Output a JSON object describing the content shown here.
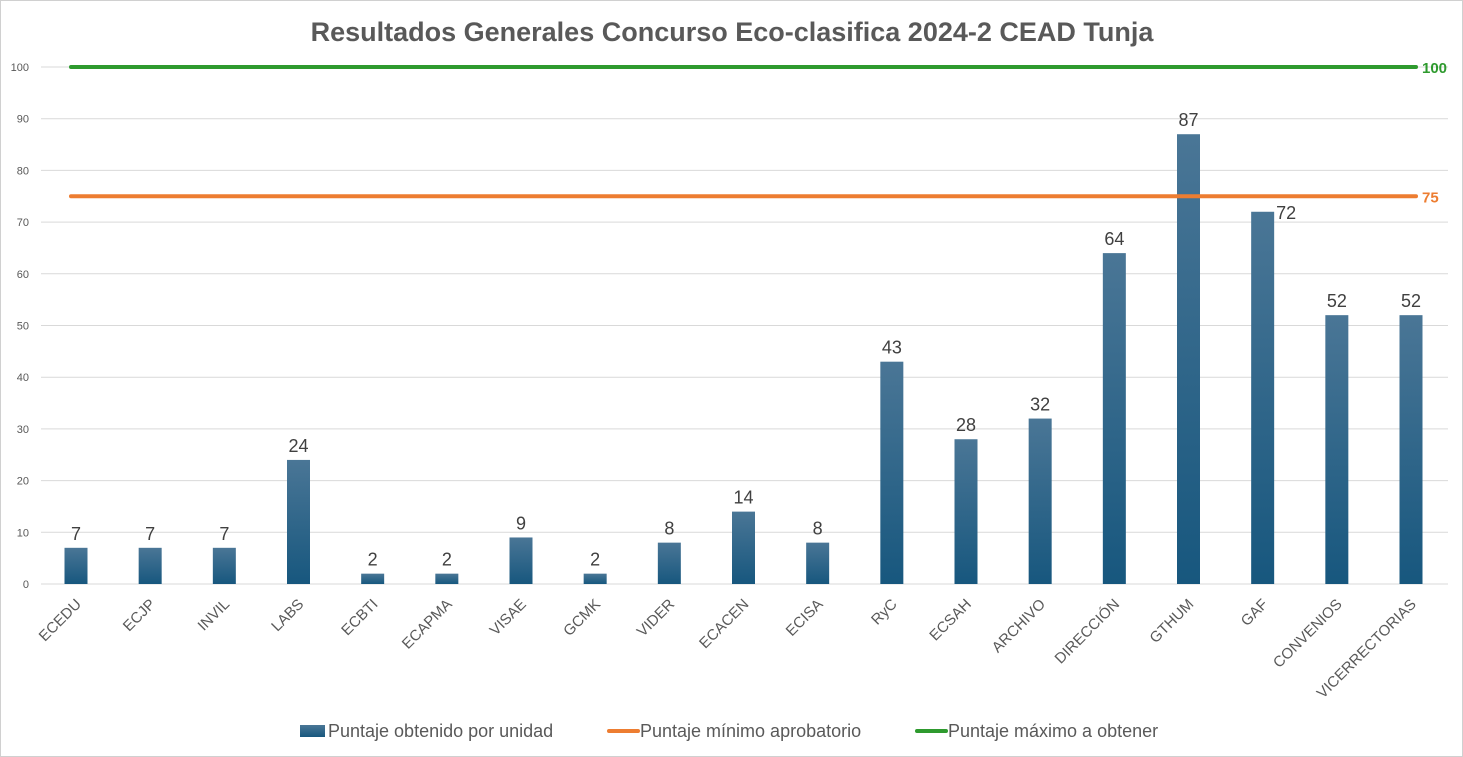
{
  "chart_data": {
    "type": "bar",
    "title": "Resultados Generales Concurso Eco-clasifica 2024-2 CEAD Tunja",
    "categories": [
      "ECEDU",
      "ECJP",
      "INVIL",
      "LABS",
      "ECBTI",
      "ECAPMA",
      "VISAE",
      "GCMK",
      "VIDER",
      "ECACEN",
      "ECISA",
      "RyC",
      "ECSAH",
      "ARCHIVO",
      "DIRECCIÓN",
      "GTHUM",
      "GAF",
      "CONVENIOS",
      "VICERRECTORIAS"
    ],
    "series": [
      {
        "name": "Puntaje obtenido por unidad",
        "values": [
          7,
          7,
          7,
          24,
          2,
          2,
          9,
          2,
          8,
          14,
          8,
          43,
          28,
          32,
          64,
          87,
          72,
          52,
          52
        ],
        "color": "#2e6386"
      }
    ],
    "reference_lines": [
      {
        "name": "Puntaje mínimo aprobatorio",
        "value": 75,
        "label": "75",
        "color": "#ed7d31"
      },
      {
        "name": "Puntaje máximo a obtener",
        "value": 100,
        "label": "100",
        "color": "#2e9a2e"
      }
    ],
    "y_ticks": [
      "0",
      "10",
      "20",
      "30",
      "40",
      "50",
      "60",
      "70",
      "80",
      "90",
      "100"
    ],
    "ylim": [
      0,
      100
    ],
    "grid": true,
    "legend_position": "bottom"
  }
}
